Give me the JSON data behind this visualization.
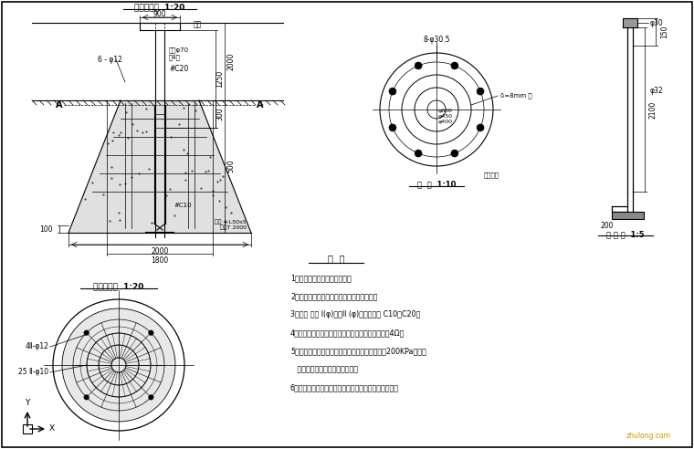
{
  "bg_color": "#ffffff",
  "notes": [
    "1、本图尺寸单位均以毫米计。",
    "2、本基础图适用于固定式灯杆，中型灯盘。",
    "3、材料 钉筋 I(φ)级，II (φ)级，混凝土 C10、C20。",
    "4、接地装置处保持排水干；接地极绝缘电阔不大于4Ω。",
    "5、要求路灯基础置于原状土上，地基承载力大于200KPa，如遇",
    "   不良地质土层应进行处置处理。",
    "6、基础顶面混凝土应符满足路人行道压实度要求处理。"
  ],
  "watermark": "zhulong.com"
}
